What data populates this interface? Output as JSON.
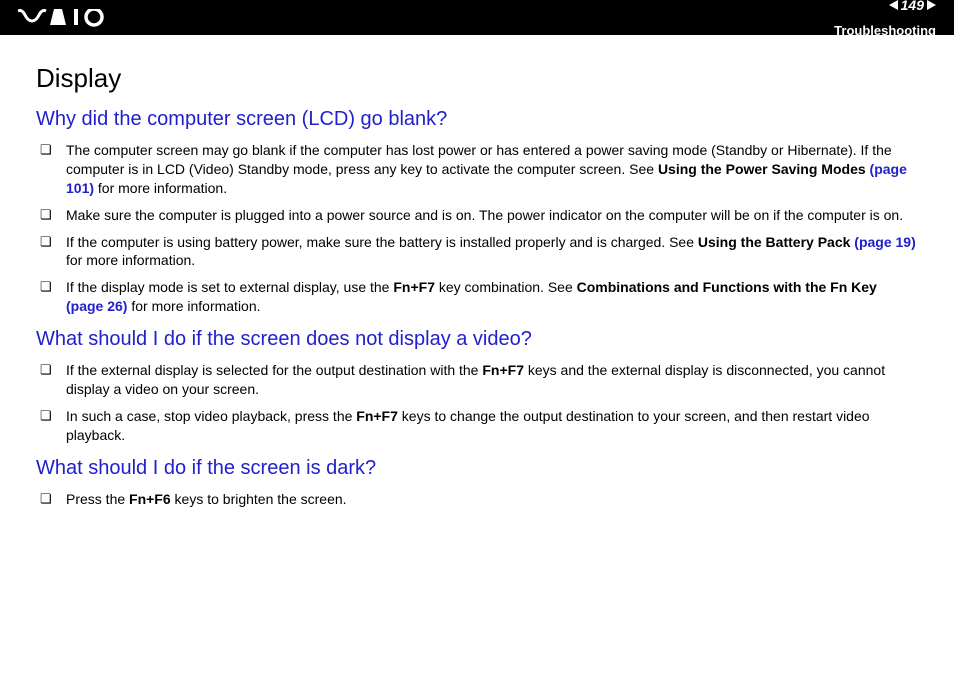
{
  "header": {
    "page_number": "149",
    "section": "Troubleshooting",
    "colors": {
      "bg": "#000000",
      "text": "#ffffff",
      "arrow": "#ffffff"
    }
  },
  "title": "Display",
  "sections": [
    {
      "heading": "Why did the computer screen (LCD) go blank?",
      "heading_color": "#2020cc",
      "items": [
        {
          "pre": "The computer screen may go blank if the computer has lost power or has entered a power saving mode (Standby or Hibernate). If the computer is in LCD (Video) Standby mode, press any key to activate the computer screen. See ",
          "bold1": "Using the Power Saving Modes ",
          "link": "(page 101)",
          "post": " for more information."
        },
        {
          "pre": "Make sure the computer is plugged into a power source and is on. The power indicator on the computer will be on if the computer is on."
        },
        {
          "pre": "If the computer is using battery power, make sure the battery is installed properly and is charged. See ",
          "bold1": "Using the Battery Pack ",
          "link": "(page 19)",
          "post": " for more information."
        },
        {
          "pre": "If the display mode is set to external display, use the ",
          "bold1": "Fn+F7",
          "mid": " key combination. See ",
          "bold2": "Combinations and Functions with the Fn Key ",
          "link": "(page 26)",
          "post": " for more information."
        }
      ]
    },
    {
      "heading": "What should I do if the screen does not display a video?",
      "heading_color": "#2020cc",
      "items": [
        {
          "pre": "If the external display is selected for the output destination with the ",
          "bold1": "Fn+F7",
          "post": " keys and the external display is disconnected, you cannot display a video on your screen."
        },
        {
          "pre": "In such a case, stop video playback, press the ",
          "bold1": "Fn+F7",
          "post": " keys to change the output destination to your screen, and then restart video playback."
        }
      ]
    },
    {
      "heading": "What should I do if the screen is dark?",
      "heading_color": "#2020cc",
      "items": [
        {
          "pre": "Press the ",
          "bold1": "Fn+F6",
          "post": " keys to brighten the screen."
        }
      ]
    }
  ],
  "typography": {
    "title_size": 26,
    "h2_size": 20,
    "body_size": 14,
    "link_color": "#2020cc"
  }
}
